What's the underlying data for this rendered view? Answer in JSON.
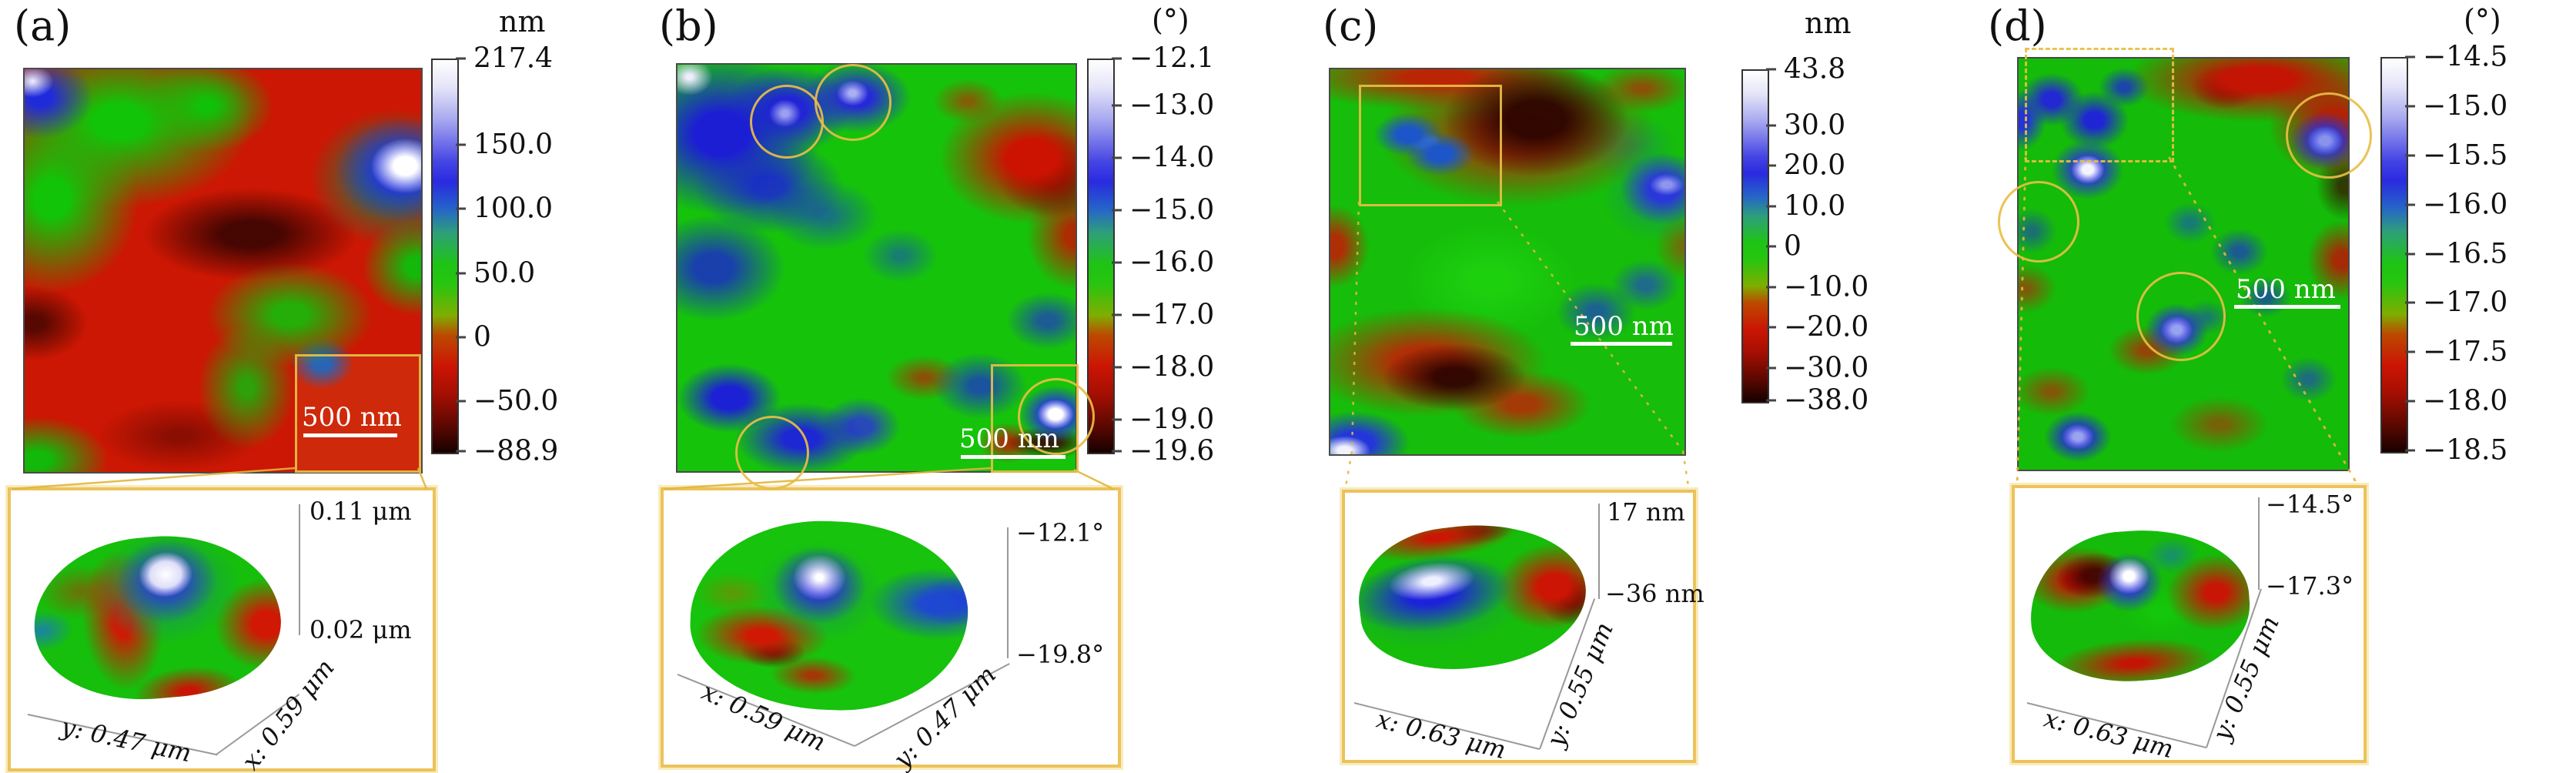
{
  "figure": {
    "panels": [
      {
        "label": "(a)",
        "colorbar": {
          "unit": "nm",
          "ticks": [
            "217.4",
            "150.0",
            "100.0",
            "50.0",
            "0",
            "−50.0",
            "−88.9"
          ]
        },
        "scalebar": "500 nm",
        "inset": {
          "z_top": "0.11 μm",
          "z_bottom": "0.02 μm",
          "axis_left": "y: 0.47 μm",
          "axis_right": "x: 0.59 μm"
        }
      },
      {
        "label": "(b)",
        "colorbar": {
          "unit": "(°)",
          "ticks": [
            "−12.1",
            "−13.0",
            "−14.0",
            "−15.0",
            "−16.0",
            "−17.0",
            "−18.0",
            "−19.0",
            "−19.6"
          ]
        },
        "scalebar": "500 nm",
        "inset": {
          "z_top": "−12.1°",
          "z_bottom": "−19.8°",
          "axis_left": "x: 0.59 μm",
          "axis_right": "y: 0.47 μm"
        }
      },
      {
        "label": "(c)",
        "colorbar": {
          "unit": "nm",
          "ticks": [
            "43.8",
            "30.0",
            "20.0",
            "10.0",
            "0",
            "−10.0",
            "−20.0",
            "−30.0",
            "−38.0"
          ]
        },
        "scalebar": "500 nm",
        "inset": {
          "z_top": "17 nm",
          "z_bottom": "−36 nm",
          "axis_left": "x: 0.63 μm",
          "axis_right": "y: 0.55 μm"
        }
      },
      {
        "label": "(d)",
        "colorbar": {
          "unit": "(°)",
          "ticks": [
            "−14.5",
            "−15.0",
            "−15.5",
            "−16.0",
            "−16.5",
            "−17.0",
            "−17.5",
            "−18.0",
            "−18.5"
          ]
        },
        "scalebar": "500 nm",
        "inset": {
          "z_top": "−14.5°",
          "z_bottom": "−17.3°",
          "axis_left": "x: 0.63 μm",
          "axis_right": "y: 0.55 μm"
        }
      }
    ],
    "colors": {
      "roi_yellow": "#e8be46",
      "scalebar_white": "#ffffff"
    }
  }
}
